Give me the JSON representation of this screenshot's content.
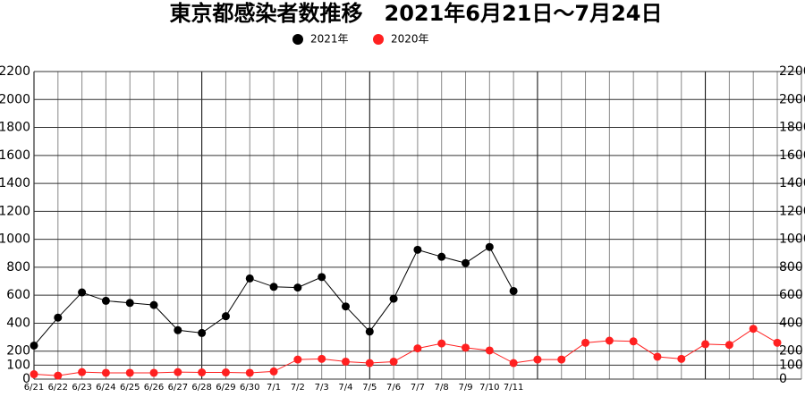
{
  "chart_data": {
    "type": "line",
    "title": "東京都感染者数推移　2021年6月21日～7月24日",
    "categories": [
      "6/21",
      "6/22",
      "6/23",
      "6/24",
      "6/25",
      "6/26",
      "6/27",
      "6/28",
      "6/29",
      "6/30",
      "7/1",
      "7/2",
      "7/3",
      "7/4",
      "7/5",
      "7/6",
      "7/7",
      "7/8",
      "7/9",
      "7/10",
      "7/11",
      null,
      null,
      null,
      null,
      null,
      null,
      null,
      null,
      null,
      null,
      null
    ],
    "series": [
      {
        "name": "2021年",
        "color": "#000000",
        "values": [
          240,
          440,
          620,
          560,
          545,
          530,
          350,
          330,
          450,
          720,
          660,
          655,
          730,
          520,
          340,
          575,
          925,
          875,
          830,
          945,
          630,
          null,
          null,
          null,
          null,
          null,
          null,
          null,
          null,
          null,
          null,
          null
        ]
      },
      {
        "name": "2020年",
        "color": "#ff2020",
        "values": [
          35,
          25,
          50,
          45,
          45,
          45,
          50,
          48,
          48,
          45,
          55,
          140,
          145,
          125,
          115,
          125,
          220,
          255,
          225,
          205,
          115,
          140,
          140,
          260,
          275,
          270,
          160,
          145,
          250,
          245,
          360,
          260
        ]
      }
    ],
    "ylim": [
      0,
      2200
    ],
    "yticks": [
      0,
      100,
      200,
      400,
      600,
      800,
      1000,
      1200,
      1400,
      1600,
      1800,
      2000,
      2200
    ],
    "grid": true,
    "legend": "top"
  }
}
